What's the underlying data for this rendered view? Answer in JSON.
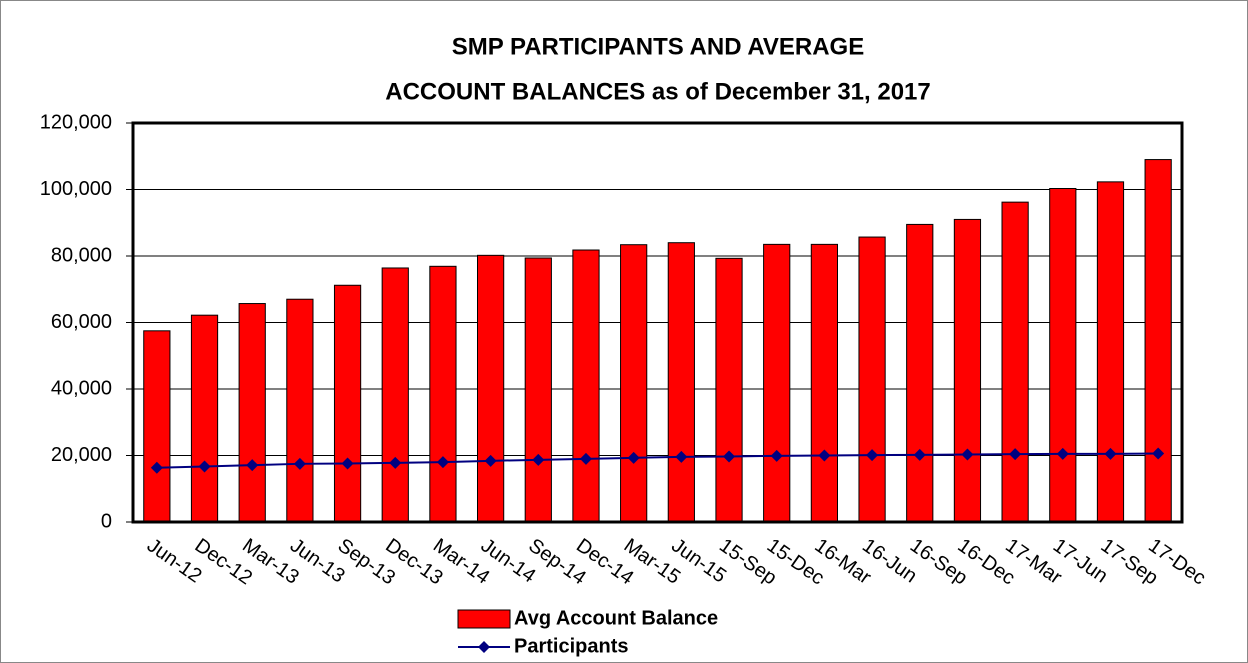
{
  "chart_data": {
    "type": "bar",
    "title": [
      "SMP PARTICIPANTS AND AVERAGE",
      "ACCOUNT BALANCES as of December 31, 2017"
    ],
    "categories": [
      "Jun-12",
      "Dec-12",
      "Mar-13",
      "Jun-13",
      "Sep-13",
      "Dec-13",
      "Mar-14",
      "Jun-14",
      "Sep-14",
      "Dec-14",
      "Mar-15",
      "Jun-15",
      "15-Sep",
      "15-Dec",
      "16-Mar",
      "16-Jun",
      "16-Sep",
      "16-Dec",
      "17-Mar",
      "17-Jun",
      "17-Sep",
      "17-Dec"
    ],
    "series": [
      {
        "name": "Avg Account Balance",
        "type": "bar",
        "color": "#ff0000",
        "values": [
          57500,
          62200,
          65700,
          67000,
          71200,
          76400,
          76900,
          80200,
          79400,
          81800,
          83400,
          84000,
          79300,
          83500,
          83500,
          85700,
          89500,
          91000,
          96200,
          100300,
          102300,
          109000
        ]
      },
      {
        "name": "Participants",
        "type": "line",
        "color": "#000080",
        "values": [
          16300,
          16700,
          17100,
          17500,
          17600,
          17800,
          18000,
          18400,
          18700,
          19000,
          19300,
          19600,
          19700,
          19900,
          20000,
          20100,
          20200,
          20300,
          20400,
          20500,
          20500,
          20600
        ]
      }
    ],
    "ylim": [
      0,
      120000
    ],
    "yticks": [
      0,
      {
        "value": 20000,
        "label": "20,000"
      },
      {
        "value": 40000,
        "label": "40,000"
      },
      {
        "value": 60000,
        "label": "60,000"
      },
      {
        "value": 80000,
        "label": "80,000"
      },
      {
        "value": 100000,
        "label": "100,000"
      },
      {
        "value": 120000,
        "label": "120,000"
      }
    ],
    "grid": true,
    "legend": "bottom"
  }
}
